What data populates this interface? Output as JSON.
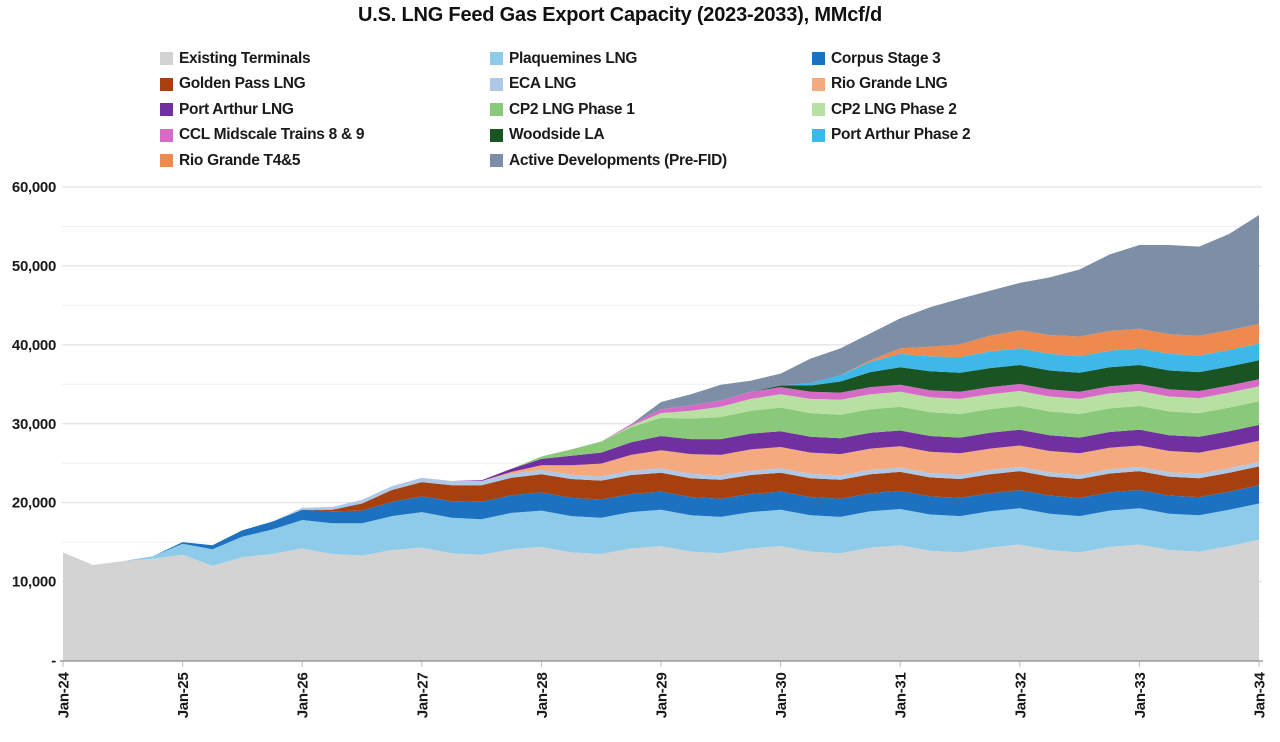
{
  "chart_data": {
    "type": "area",
    "stacked": true,
    "title": "U.S. LNG Feed Gas Export Capacity (2023-2033), MMcf/d",
    "unit": "MMcf/d",
    "grid": "horizontal",
    "legend_position": "top",
    "legend_columns": 3,
    "ylim": [
      0,
      60000
    ],
    "y_tick_values": [
      0,
      10000,
      20000,
      30000,
      40000,
      50000,
      60000
    ],
    "y_tick_labels": [
      "-",
      "10,000",
      "20,000",
      "30,000",
      "40,000",
      "50,000",
      "60,000"
    ],
    "x_tick_labels": [
      "Jan-24",
      "Jan-25",
      "Jan-26",
      "Jan-27",
      "Jan-28",
      "Jan-29",
      "Jan-30",
      "Jan-31",
      "Jan-32",
      "Jan-33",
      "Jan-34"
    ],
    "x": [
      "Jan-24",
      "Apr-24",
      "Jul-24",
      "Oct-24",
      "Jan-25",
      "Apr-25",
      "Jul-25",
      "Oct-25",
      "Jan-26",
      "Apr-26",
      "Jul-26",
      "Oct-26",
      "Jan-27",
      "Apr-27",
      "Jul-27",
      "Oct-27",
      "Jan-28",
      "Apr-28",
      "Jul-28",
      "Oct-28",
      "Jan-29",
      "Apr-29",
      "Jul-29",
      "Oct-29",
      "Jan-30",
      "Apr-30",
      "Jul-30",
      "Oct-30",
      "Jan-31",
      "Apr-31",
      "Jul-31",
      "Oct-31",
      "Jan-32",
      "Apr-32",
      "Jul-32",
      "Oct-32",
      "Jan-33",
      "Apr-33",
      "Jul-33",
      "Oct-33",
      "Jan-34"
    ],
    "series": [
      {
        "name": "Existing Terminals",
        "color": "#D3D3D3",
        "values": [
          13700,
          12100,
          12600,
          12900,
          13400,
          12000,
          13100,
          13500,
          14200,
          13500,
          13300,
          14000,
          14300,
          13600,
          13400,
          14100,
          14400,
          13700,
          13500,
          14200,
          14500,
          13800,
          13600,
          14200,
          14500,
          13800,
          13600,
          14300,
          14600,
          13900,
          13700,
          14300,
          14700,
          14000,
          13700,
          14400,
          14700,
          14000,
          13800,
          14500,
          15300
        ]
      },
      {
        "name": "Plaquemines LNG",
        "color": "#8DCBE9",
        "values": [
          0,
          0,
          0,
          300,
          1400,
          2100,
          2600,
          3100,
          3600,
          3900,
          4100,
          4300,
          4500,
          4500,
          4500,
          4600,
          4600,
          4600,
          4600,
          4600,
          4600,
          4600,
          4600,
          4600,
          4600,
          4600,
          4600,
          4600,
          4600,
          4600,
          4600,
          4600,
          4600,
          4600,
          4600,
          4600,
          4600,
          4600,
          4600,
          4600,
          4600
        ]
      },
      {
        "name": "Corpus Stage 3",
        "color": "#1D71C1",
        "values": [
          0,
          0,
          0,
          0,
          200,
          500,
          800,
          1000,
          1300,
          1500,
          1600,
          1800,
          2000,
          2100,
          2200,
          2250,
          2300,
          2300,
          2300,
          2300,
          2300,
          2300,
          2300,
          2300,
          2300,
          2300,
          2300,
          2300,
          2300,
          2300,
          2300,
          2300,
          2300,
          2300,
          2300,
          2300,
          2300,
          2300,
          2300,
          2300,
          2300
        ]
      },
      {
        "name": "Golden Pass LNG",
        "color": "#A6400E",
        "values": [
          0,
          0,
          0,
          0,
          0,
          0,
          0,
          0,
          0,
          200,
          900,
          1500,
          1800,
          2000,
          2100,
          2200,
          2300,
          2400,
          2400,
          2400,
          2400,
          2400,
          2400,
          2400,
          2400,
          2400,
          2400,
          2400,
          2400,
          2400,
          2400,
          2400,
          2400,
          2400,
          2400,
          2400,
          2400,
          2400,
          2400,
          2400,
          2400
        ]
      },
      {
        "name": "ECA LNG",
        "color": "#AEC8E6",
        "values": [
          0,
          0,
          0,
          0,
          0,
          0,
          0,
          0,
          250,
          350,
          450,
          500,
          550,
          550,
          550,
          550,
          550,
          550,
          550,
          550,
          550,
          550,
          550,
          550,
          550,
          550,
          550,
          550,
          550,
          550,
          550,
          550,
          550,
          550,
          550,
          550,
          550,
          550,
          550,
          550,
          550
        ]
      },
      {
        "name": "Rio Grande LNG",
        "color": "#F4A97E",
        "values": [
          0,
          0,
          0,
          0,
          0,
          0,
          0,
          0,
          0,
          0,
          0,
          0,
          0,
          0,
          0,
          200,
          600,
          1200,
          1600,
          2000,
          2300,
          2500,
          2600,
          2700,
          2700,
          2700,
          2700,
          2700,
          2700,
          2700,
          2700,
          2700,
          2700,
          2700,
          2700,
          2700,
          2700,
          2700,
          2700,
          2700,
          2700
        ]
      },
      {
        "name": "Port Arthur LNG",
        "color": "#7030A0",
        "values": [
          0,
          0,
          0,
          0,
          0,
          0,
          0,
          0,
          0,
          0,
          0,
          0,
          0,
          0,
          100,
          400,
          800,
          1200,
          1400,
          1600,
          1800,
          1900,
          2000,
          2000,
          2000,
          2000,
          2000,
          2000,
          2000,
          2000,
          2000,
          2000,
          2000,
          2000,
          2000,
          2000,
          2000,
          2000,
          2000,
          2000,
          2000
        ]
      },
      {
        "name": "CP2 LNG Phase 1",
        "color": "#89C979",
        "values": [
          0,
          0,
          0,
          0,
          0,
          0,
          0,
          0,
          0,
          0,
          0,
          0,
          0,
          0,
          0,
          0,
          300,
          800,
          1400,
          1900,
          2300,
          2600,
          2800,
          2900,
          3000,
          3000,
          3000,
          3000,
          3000,
          3000,
          3000,
          3000,
          3000,
          3000,
          3000,
          3000,
          3000,
          3000,
          3000,
          3000,
          3000
        ]
      },
      {
        "name": "CP2 LNG Phase 2",
        "color": "#B9E0A3",
        "values": [
          0,
          0,
          0,
          0,
          0,
          0,
          0,
          0,
          0,
          0,
          0,
          0,
          0,
          0,
          0,
          0,
          0,
          0,
          0,
          200,
          600,
          1000,
          1300,
          1500,
          1700,
          1800,
          1900,
          1900,
          1900,
          1900,
          1900,
          1900,
          1900,
          1900,
          1900,
          1900,
          1900,
          1900,
          1900,
          1900,
          1900
        ]
      },
      {
        "name": "CCL Midscale Trains 8 & 9",
        "color": "#D66BC7",
        "values": [
          0,
          0,
          0,
          0,
          0,
          0,
          0,
          0,
          0,
          0,
          0,
          0,
          0,
          0,
          0,
          0,
          0,
          0,
          0,
          200,
          500,
          700,
          800,
          900,
          900,
          900,
          900,
          900,
          900,
          900,
          900,
          900,
          900,
          900,
          900,
          900,
          900,
          900,
          900,
          900,
          900
        ]
      },
      {
        "name": "Woodside LA",
        "color": "#1A5423",
        "values": [
          0,
          0,
          0,
          0,
          0,
          0,
          0,
          0,
          0,
          0,
          0,
          0,
          0,
          0,
          0,
          0,
          0,
          0,
          0,
          0,
          0,
          0,
          0,
          0,
          200,
          800,
          1400,
          1900,
          2200,
          2400,
          2400,
          2400,
          2400,
          2400,
          2400,
          2400,
          2400,
          2400,
          2400,
          2400,
          2400
        ]
      },
      {
        "name": "Port Arthur Phase 2",
        "color": "#3EB7E9",
        "values": [
          0,
          0,
          0,
          0,
          0,
          0,
          0,
          0,
          0,
          0,
          0,
          0,
          0,
          0,
          0,
          0,
          0,
          0,
          0,
          0,
          0,
          0,
          0,
          0,
          0,
          300,
          800,
          1300,
          1700,
          1900,
          2000,
          2100,
          2100,
          2100,
          2100,
          2100,
          2100,
          2100,
          2100,
          2100,
          2100
        ]
      },
      {
        "name": "Rio Grande T4&5",
        "color": "#EE8A4D",
        "values": [
          0,
          0,
          0,
          0,
          0,
          0,
          0,
          0,
          0,
          0,
          0,
          0,
          0,
          0,
          0,
          0,
          0,
          0,
          0,
          0,
          0,
          0,
          0,
          0,
          0,
          0,
          0,
          200,
          700,
          1200,
          1600,
          2000,
          2300,
          2400,
          2500,
          2500,
          2500,
          2500,
          2500,
          2500,
          2500
        ]
      },
      {
        "name": "Active Developments (Pre-FID)",
        "color": "#7D8FA6",
        "values": [
          0,
          0,
          0,
          0,
          0,
          0,
          0,
          0,
          0,
          0,
          0,
          0,
          0,
          0,
          0,
          0,
          0,
          0,
          0,
          0,
          900,
          1400,
          2000,
          1400,
          1500,
          3100,
          3400,
          3400,
          3800,
          5000,
          5800,
          5700,
          6000,
          7300,
          8500,
          9700,
          10600,
          11300,
          11300,
          12200,
          13800
        ]
      }
    ]
  }
}
